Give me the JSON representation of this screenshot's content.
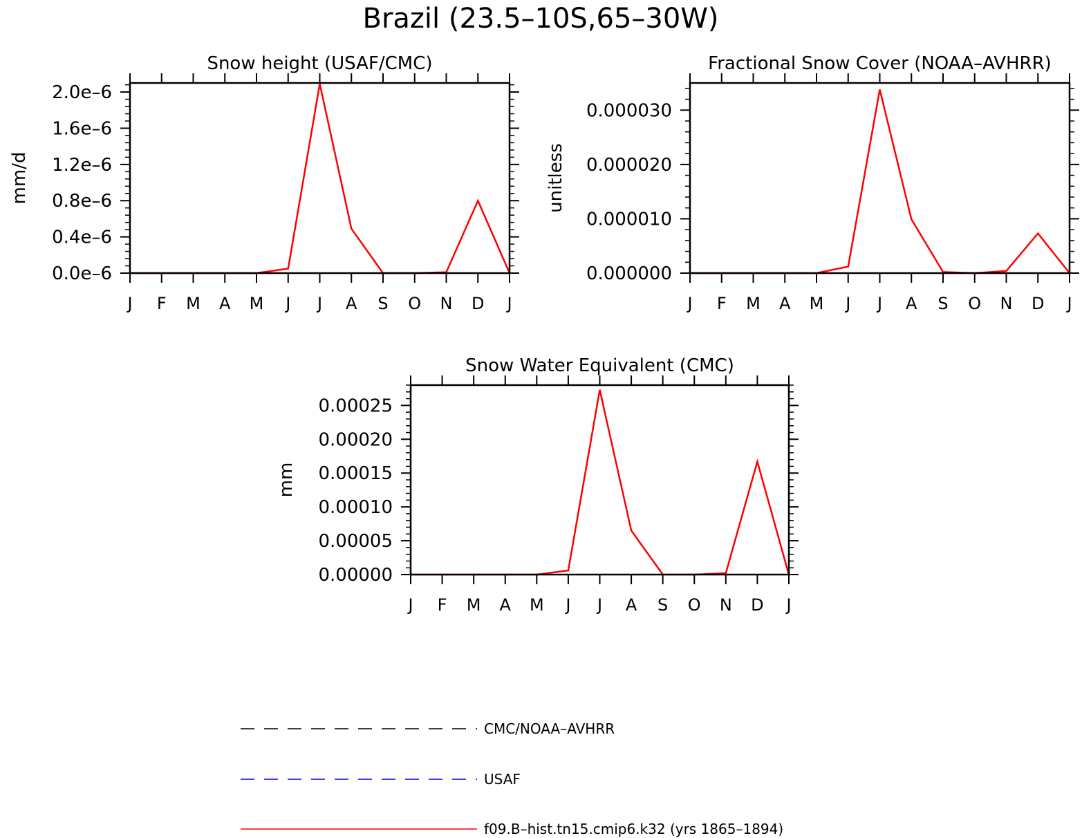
{
  "figure": {
    "title": "Brazil (23.5–10S,65–30W)"
  },
  "legend": {
    "entries": [
      {
        "label": "CMC/NOAA–AVHRR",
        "color": "#000000",
        "style": "dashed"
      },
      {
        "label": "USAF",
        "color": "#0000ff",
        "style": "dashed"
      },
      {
        "label": "f09.B–hist.tn15.cmip6.k32 (yrs 1865–1894)",
        "color": "#ff0000",
        "style": "solid"
      }
    ]
  },
  "chart_data": [
    {
      "type": "line",
      "title": "Snow height (USAF/CMC)",
      "ylabel": "mm/d",
      "xlabel": "",
      "categories": [
        "J",
        "F",
        "M",
        "A",
        "M",
        "J",
        "J",
        "A",
        "S",
        "O",
        "N",
        "D",
        "J"
      ],
      "ylim": [
        0,
        2.1e-06
      ],
      "yticks": [
        0,
        4e-07,
        8e-07,
        1.2e-06,
        1.6e-06,
        2e-06
      ],
      "ytick_labels": [
        "0.0e–6",
        "0.4e–6",
        "0.8e–6",
        "1.2e–6",
        "1.6e–6",
        "2.0e–6"
      ],
      "grid": false,
      "series": [
        {
          "color": "#ff0000",
          "style": "solid",
          "values": [
            0,
            0,
            0,
            0,
            0,
            5e-08,
            2.09e-06,
            4.9e-07,
            0,
            0,
            1e-08,
            8e-07,
            0
          ]
        },
        {
          "color": "#000000",
          "style": "dashed",
          "values": [
            0,
            0,
            0,
            0,
            0,
            0,
            0,
            0,
            0,
            0,
            0,
            0,
            0
          ]
        }
      ]
    },
    {
      "type": "line",
      "title": "Fractional Snow Cover (NOAA–AVHRR)",
      "ylabel": "unitless",
      "xlabel": "",
      "categories": [
        "J",
        "F",
        "M",
        "A",
        "M",
        "J",
        "J",
        "A",
        "S",
        "O",
        "N",
        "D",
        "J"
      ],
      "ylim": [
        0,
        3.5e-05
      ],
      "yticks": [
        0,
        1e-05,
        2e-05,
        3e-05
      ],
      "ytick_labels": [
        "0.000000",
        "0.000010",
        "0.000020",
        "0.000030"
      ],
      "grid": false,
      "series": [
        {
          "color": "#ff0000",
          "style": "solid",
          "values": [
            0,
            0,
            0,
            0,
            0,
            1.2e-06,
            3.38e-05,
            9.9e-06,
            2e-07,
            0,
            4e-07,
            7.3e-06,
            0
          ]
        },
        {
          "color": "#000000",
          "style": "dashed",
          "values": [
            0,
            0,
            0,
            0,
            0,
            0,
            0,
            0,
            0,
            0,
            0,
            0,
            0
          ]
        }
      ]
    },
    {
      "type": "line",
      "title": "Snow Water Equivalent (CMC)",
      "ylabel": "mm",
      "xlabel": "",
      "categories": [
        "J",
        "F",
        "M",
        "A",
        "M",
        "J",
        "J",
        "A",
        "S",
        "O",
        "N",
        "D",
        "J"
      ],
      "ylim": [
        0,
        0.00028
      ],
      "yticks": [
        0,
        5e-05,
        0.0001,
        0.00015,
        0.0002,
        0.00025
      ],
      "ytick_labels": [
        "0.00000",
        "0.00005",
        "0.00010",
        "0.00015",
        "0.00020",
        "0.00025"
      ],
      "grid": false,
      "series": [
        {
          "color": "#ff0000",
          "style": "solid",
          "values": [
            0,
            0,
            0,
            0,
            0,
            6e-06,
            0.000273,
            6.5e-05,
            0,
            0,
            2e-06,
            0.000167,
            0
          ]
        },
        {
          "color": "#000000",
          "style": "dashed",
          "values": [
            0,
            0,
            0,
            0,
            0,
            0,
            0,
            0,
            0,
            0,
            0,
            0,
            0
          ]
        }
      ]
    }
  ]
}
